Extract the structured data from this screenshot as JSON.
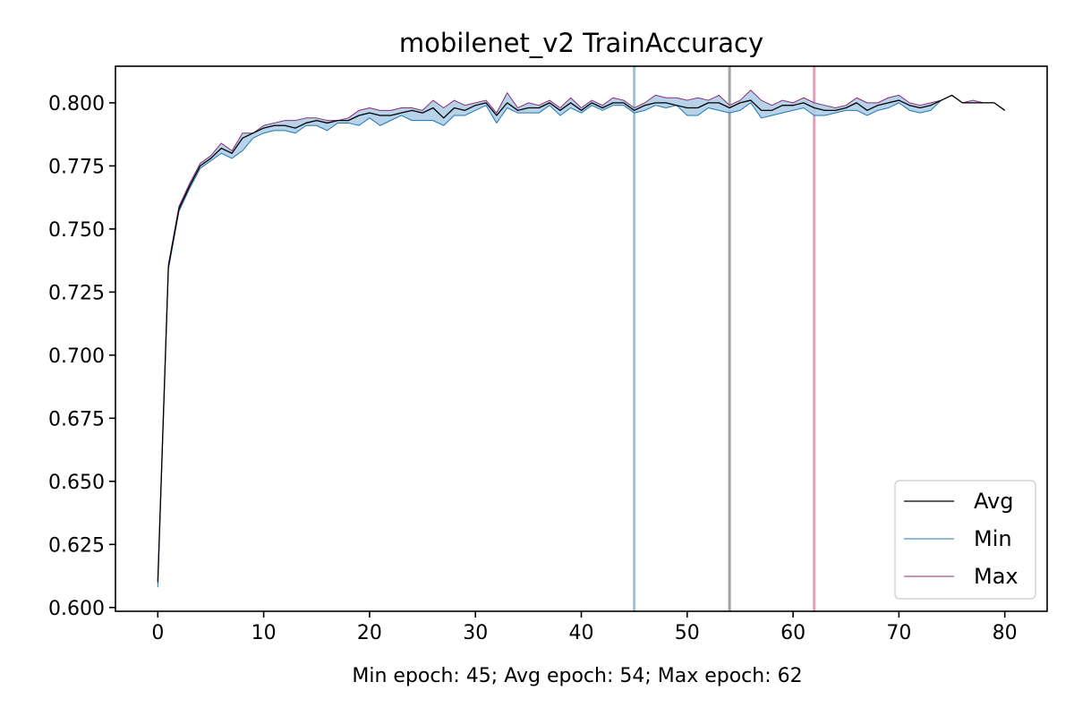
{
  "chart_data": {
    "type": "line",
    "title": "mobilenet_v2 TrainAccuracy",
    "xlabel": "Min epoch: 45; Avg epoch: 54; Max epoch: 62",
    "ylabel": "",
    "xlim": [
      -4,
      84
    ],
    "ylim": [
      0.5985,
      0.8145
    ],
    "xticks": [
      0,
      10,
      20,
      30,
      40,
      50,
      60,
      70,
      80
    ],
    "yticks": [
      0.6,
      0.625,
      0.65,
      0.675,
      0.7,
      0.725,
      0.75,
      0.775,
      0.8
    ],
    "ytick_labels": [
      "0.600",
      "0.625",
      "0.650",
      "0.675",
      "0.700",
      "0.725",
      "0.750",
      "0.775",
      "0.800"
    ],
    "grid": false,
    "legend_position": "lower-right",
    "x": [
      0,
      1,
      2,
      3,
      4,
      5,
      6,
      7,
      8,
      9,
      10,
      11,
      12,
      13,
      14,
      15,
      16,
      17,
      18,
      19,
      20,
      21,
      22,
      23,
      24,
      25,
      26,
      27,
      28,
      29,
      30,
      31,
      32,
      33,
      34,
      35,
      36,
      37,
      38,
      39,
      40,
      41,
      42,
      43,
      44,
      45,
      46,
      47,
      48,
      49,
      50,
      51,
      52,
      53,
      54,
      55,
      56,
      57,
      58,
      59,
      60,
      61,
      62,
      63,
      64,
      65,
      66,
      67,
      68,
      69,
      70,
      71,
      72,
      73,
      74,
      75,
      76,
      77,
      78,
      79,
      80
    ],
    "series": [
      {
        "name": "Avg",
        "color": "#000000",
        "values": [
          0.61,
          0.735,
          0.758,
          0.767,
          0.775,
          0.778,
          0.782,
          0.78,
          0.786,
          0.788,
          0.79,
          0.791,
          0.791,
          0.79,
          0.792,
          0.793,
          0.792,
          0.793,
          0.793,
          0.795,
          0.796,
          0.795,
          0.795,
          0.796,
          0.797,
          0.796,
          0.798,
          0.794,
          0.798,
          0.797,
          0.799,
          0.8,
          0.795,
          0.8,
          0.797,
          0.798,
          0.798,
          0.8,
          0.797,
          0.8,
          0.797,
          0.8,
          0.798,
          0.8,
          0.8,
          0.797,
          0.799,
          0.8,
          0.8,
          0.799,
          0.798,
          0.798,
          0.8,
          0.8,
          0.798,
          0.8,
          0.801,
          0.797,
          0.797,
          0.799,
          0.799,
          0.8,
          0.798,
          0.797,
          0.797,
          0.798,
          0.8,
          0.797,
          0.799,
          0.8,
          0.801,
          0.799,
          0.798,
          0.799,
          0.801,
          0.803,
          0.8,
          0.8,
          0.8,
          0.8,
          0.797
        ]
      },
      {
        "name": "Min",
        "color": "#1f77b4",
        "values": [
          0.608,
          0.734,
          0.757,
          0.766,
          0.774,
          0.777,
          0.78,
          0.778,
          0.781,
          0.786,
          0.788,
          0.789,
          0.789,
          0.788,
          0.791,
          0.791,
          0.789,
          0.792,
          0.792,
          0.791,
          0.794,
          0.791,
          0.793,
          0.795,
          0.793,
          0.793,
          0.793,
          0.791,
          0.795,
          0.795,
          0.797,
          0.799,
          0.792,
          0.798,
          0.796,
          0.796,
          0.796,
          0.799,
          0.795,
          0.798,
          0.796,
          0.799,
          0.797,
          0.799,
          0.799,
          0.796,
          0.797,
          0.799,
          0.798,
          0.799,
          0.795,
          0.795,
          0.798,
          0.797,
          0.796,
          0.797,
          0.8,
          0.794,
          0.795,
          0.796,
          0.797,
          0.798,
          0.795,
          0.795,
          0.796,
          0.797,
          0.797,
          0.795,
          0.797,
          0.798,
          0.8,
          0.797,
          0.796,
          0.797,
          0.801,
          0.803,
          0.8,
          0.8,
          0.8,
          0.8,
          0.797
        ]
      },
      {
        "name": "Max",
        "color": "#8c2d6e",
        "values": [
          0.611,
          0.736,
          0.759,
          0.768,
          0.776,
          0.779,
          0.784,
          0.781,
          0.788,
          0.788,
          0.791,
          0.792,
          0.793,
          0.793,
          0.794,
          0.794,
          0.793,
          0.793,
          0.794,
          0.797,
          0.798,
          0.797,
          0.797,
          0.798,
          0.798,
          0.797,
          0.801,
          0.798,
          0.801,
          0.799,
          0.8,
          0.801,
          0.796,
          0.804,
          0.798,
          0.8,
          0.799,
          0.801,
          0.798,
          0.802,
          0.798,
          0.801,
          0.799,
          0.802,
          0.801,
          0.798,
          0.8,
          0.803,
          0.802,
          0.802,
          0.801,
          0.802,
          0.801,
          0.803,
          0.799,
          0.801,
          0.805,
          0.801,
          0.799,
          0.801,
          0.8,
          0.802,
          0.8,
          0.799,
          0.798,
          0.799,
          0.802,
          0.8,
          0.8,
          0.802,
          0.803,
          0.8,
          0.799,
          0.8,
          0.801,
          0.803,
          0.8,
          0.801,
          0.8,
          0.8,
          0.797
        ]
      }
    ],
    "vlines": [
      {
        "label": "Min epoch",
        "x": 45,
        "color": "#9ec4dc"
      },
      {
        "label": "Avg epoch",
        "x": 54,
        "color": "#a3a3a3"
      },
      {
        "label": "Max epoch",
        "x": 62,
        "color": "#e0a3b8"
      }
    ],
    "band_color": "#a9cbe6"
  }
}
